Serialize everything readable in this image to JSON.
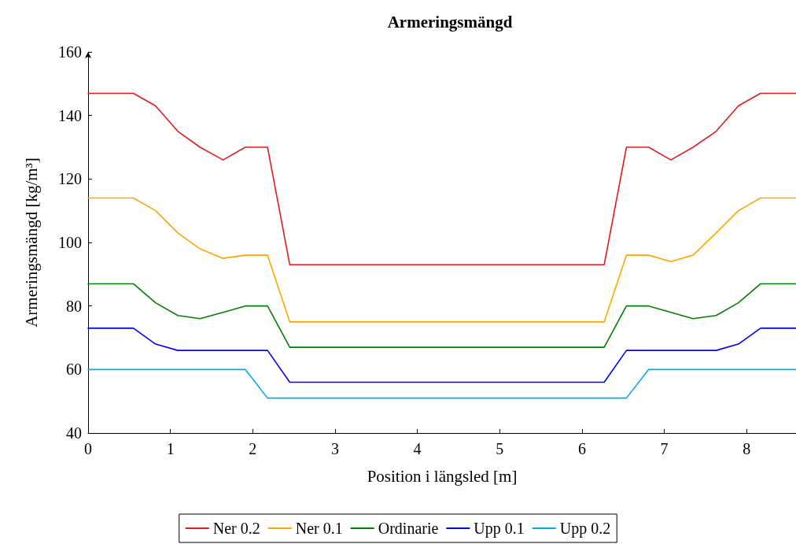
{
  "chart_data": {
    "type": "line",
    "title": "Armeringsmängd",
    "xlabel": "Position i längsled [m]",
    "ylabel": "Armeringsmängd [kg/m³]",
    "x": [
      0,
      0.55,
      0.82,
      1.09,
      1.36,
      1.64,
      1.91,
      2.18,
      2.45,
      6.27,
      6.54,
      6.81,
      7.08,
      7.35,
      7.63,
      7.9,
      8.17,
      8.6
    ],
    "series": [
      {
        "name": "Ner 0.2",
        "color": "#e41a1c",
        "values": [
          147,
          147,
          143,
          135,
          130,
          126,
          130,
          130,
          93,
          93,
          130,
          130,
          126,
          130,
          135,
          143,
          147,
          147
        ]
      },
      {
        "name": "Ner 0.1",
        "color": "#ffa500",
        "values": [
          114,
          114,
          110,
          103,
          98,
          95,
          96,
          96,
          75,
          75,
          96,
          96,
          94,
          96,
          103,
          110,
          114,
          114
        ]
      },
      {
        "name": "Ordinarie",
        "color": "#008000",
        "values": [
          87,
          87,
          81,
          77,
          76,
          78,
          80,
          80,
          67,
          67,
          80,
          80,
          78,
          76,
          77,
          81,
          87,
          87
        ]
      },
      {
        "name": "Upp 0.1",
        "color": "#0000ff",
        "values": [
          73,
          73,
          68,
          66,
          66,
          66,
          66,
          66,
          56,
          56,
          66,
          66,
          66,
          66,
          66,
          68,
          73,
          73
        ]
      },
      {
        "name": "Upp 0.2",
        "color": "#00aaee",
        "values": [
          60,
          60,
          60,
          60,
          60,
          60,
          60,
          51,
          51,
          51,
          51,
          60,
          60,
          60,
          60,
          60,
          60,
          60
        ]
      }
    ],
    "xlim": [
      0,
      8.6
    ],
    "xticks": [
      0,
      1,
      2,
      3,
      4,
      5,
      6,
      7,
      8
    ],
    "ylim": [
      40,
      160
    ],
    "yticks": [
      40,
      60,
      80,
      100,
      120,
      140,
      160
    ],
    "grid": false,
    "legend": "bottom",
    "marker": "none",
    "line_style": "solid"
  }
}
